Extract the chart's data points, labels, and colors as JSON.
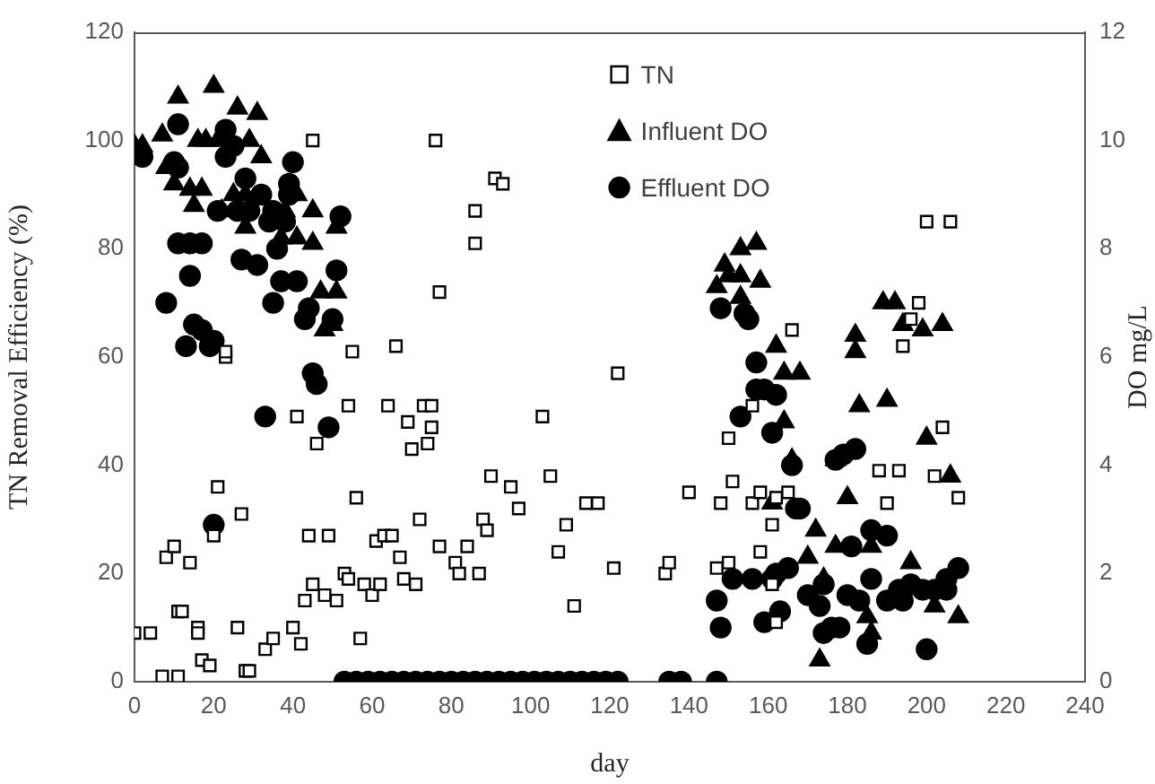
{
  "chart_data": {
    "type": "scatter",
    "xlabel": "day",
    "ylabel": "TN Removal Efficiency (%)",
    "y2label": "DO mg/L",
    "xlim": [
      0,
      240
    ],
    "xticks": [
      0,
      20,
      40,
      60,
      80,
      100,
      120,
      140,
      160,
      180,
      200,
      220,
      240
    ],
    "ylim": [
      0,
      120
    ],
    "yticks": [
      0,
      20,
      40,
      60,
      80,
      100,
      120
    ],
    "y2lim": [
      0,
      12
    ],
    "y2ticks": [
      0,
      2,
      4,
      6,
      8,
      10,
      12
    ],
    "grid": false,
    "legend": "top",
    "series": [
      {
        "name": "TN",
        "color": "#000000",
        "marker": "square",
        "x": [
          0,
          4,
          7,
          8,
          10,
          11,
          11,
          12,
          14,
          16,
          16,
          17,
          19,
          20,
          21,
          23,
          23,
          26,
          27,
          28,
          29,
          33,
          35,
          40,
          41,
          42,
          43,
          44,
          45,
          45,
          46,
          48,
          49,
          51,
          53,
          54,
          54,
          55,
          56,
          57,
          58,
          60,
          61,
          62,
          63,
          64,
          65,
          66,
          67,
          68,
          69,
          70,
          71,
          72,
          73,
          74,
          75,
          75,
          76,
          77,
          77,
          81,
          82,
          84,
          86,
          86,
          87,
          88,
          89,
          90,
          91,
          93,
          95,
          97,
          103,
          105,
          107,
          109,
          111,
          114,
          117,
          121,
          122,
          134,
          135,
          140,
          147,
          148,
          150,
          150,
          151,
          156,
          156,
          158,
          158,
          161,
          161,
          162,
          162,
          165,
          166,
          188,
          190,
          193,
          194,
          196,
          198,
          200,
          202,
          204,
          206,
          208
        ],
        "values": [
          9,
          9,
          1,
          23,
          25,
          1,
          13,
          13,
          22,
          10,
          9,
          4,
          3,
          27,
          36,
          60,
          61,
          10,
          31,
          2,
          2,
          6,
          8,
          10,
          49,
          7,
          15,
          27,
          18,
          100,
          44,
          16,
          27,
          15,
          20,
          19,
          51,
          61,
          34,
          8,
          18,
          16,
          26,
          18,
          27,
          51,
          27,
          62,
          23,
          19,
          48,
          43,
          18,
          30,
          51,
          44,
          51,
          47,
          100,
          25,
          72,
          22,
          20,
          25,
          81,
          87,
          20,
          30,
          28,
          38,
          93,
          92,
          36,
          32,
          49,
          38,
          24,
          29,
          14,
          33,
          33,
          21,
          57,
          20,
          22,
          35,
          21,
          33,
          22,
          45,
          37,
          33,
          51,
          35,
          24,
          18,
          29,
          34,
          11,
          35,
          65,
          39,
          33,
          39,
          62,
          67,
          70,
          85,
          38,
          47,
          85,
          34
        ]
      },
      {
        "name": "Influent DO",
        "color": "#000000",
        "marker": "triangle",
        "axis": "y2",
        "x": [
          0,
          2,
          7,
          8,
          10,
          11,
          14,
          15,
          16,
          17,
          18,
          20,
          21,
          22,
          25,
          26,
          28,
          28,
          29,
          31,
          32,
          37,
          38,
          41,
          41,
          45,
          45,
          47,
          48,
          50,
          51,
          51,
          147,
          149,
          150,
          153,
          153,
          153,
          157,
          158,
          161,
          162,
          164,
          164,
          166,
          168,
          170,
          172,
          173,
          174,
          177,
          177,
          180,
          182,
          182,
          183,
          185,
          186,
          186,
          189,
          190,
          192,
          194,
          196,
          199,
          200,
          202,
          204,
          206,
          208
        ],
        "values": [
          9.9,
          9.9,
          10.1,
          9.5,
          9.2,
          10.8,
          9.1,
          8.8,
          10.0,
          9.1,
          10.0,
          11.0,
          10.0,
          8.7,
          9.0,
          10.6,
          9.0,
          8.4,
          10.0,
          10.5,
          9.7,
          8.2,
          8.7,
          9.0,
          8.2,
          8.7,
          8.1,
          7.2,
          6.5,
          6.6,
          8.4,
          7.2,
          7.3,
          7.7,
          7.5,
          8.0,
          7.5,
          7.1,
          8.1,
          7.4,
          3.3,
          6.2,
          5.7,
          4.8,
          4.1,
          5.7,
          2.3,
          2.8,
          0.4,
          1.9,
          4.1,
          2.5,
          3.4,
          6.4,
          6.1,
          5.1,
          1.2,
          0.9,
          2.5,
          7.0,
          5.2,
          7.0,
          6.6,
          2.2,
          6.5,
          4.5,
          1.4,
          6.6,
          3.8,
          1.2
        ]
      },
      {
        "name": "Effluent DO",
        "color": "#000000",
        "marker": "circle",
        "axis": "y2",
        "x": [
          2,
          8,
          10,
          11,
          11,
          11,
          13,
          14,
          14,
          15,
          17,
          17,
          19,
          20,
          20,
          21,
          23,
          23,
          25,
          26,
          27,
          28,
          29,
          31,
          32,
          33,
          34,
          35,
          35,
          36,
          37,
          38,
          39,
          39,
          40,
          41,
          43,
          44,
          45,
          46,
          49,
          50,
          51,
          52,
          53,
          56,
          59,
          62,
          65,
          68,
          71,
          74,
          77,
          80,
          83,
          86,
          89,
          92,
          95,
          98,
          101,
          104,
          107,
          110,
          113,
          116,
          119,
          122,
          135,
          138,
          147,
          147,
          148,
          148,
          151,
          153,
          154,
          155,
          156,
          157,
          157,
          159,
          159,
          161,
          161,
          162,
          162,
          163,
          165,
          166,
          167,
          168,
          170,
          173,
          174,
          174,
          176,
          177,
          178,
          179,
          180,
          181,
          182,
          183,
          185,
          186,
          186,
          190,
          190,
          193,
          194,
          196,
          199,
          200,
          202,
          205,
          205,
          208
        ],
        "values": [
          9.7,
          7.0,
          9.6,
          10.3,
          9.5,
          8.1,
          6.2,
          8.1,
          7.5,
          6.6,
          8.1,
          6.5,
          6.2,
          6.3,
          2.9,
          8.7,
          9.7,
          10.2,
          9.9,
          8.7,
          7.8,
          9.3,
          8.7,
          7.7,
          9.0,
          4.9,
          8.5,
          8.7,
          7.0,
          8.0,
          7.4,
          8.5,
          9.0,
          9.2,
          9.6,
          7.4,
          6.7,
          6.9,
          5.7,
          5.5,
          4.7,
          6.7,
          7.6,
          8.6,
          0,
          0,
          0,
          0,
          0,
          0,
          0,
          0,
          0,
          0,
          0,
          0,
          0,
          0,
          0,
          0,
          0,
          0,
          0,
          0,
          0,
          0,
          0,
          0,
          0,
          0,
          0,
          1.5,
          6.9,
          1.0,
          1.9,
          4.9,
          6.8,
          6.7,
          1.9,
          5.9,
          5.4,
          5.4,
          1.1,
          4.6,
          1.9,
          5.3,
          2.0,
          1.3,
          2.1,
          4.0,
          3.2,
          3.2,
          1.6,
          1.4,
          0.9,
          1.8,
          1.0,
          4.1,
          1.0,
          4.2,
          1.6,
          2.5,
          4.3,
          1.5,
          0.7,
          2.8,
          1.9,
          2.7,
          1.5,
          1.7,
          1.5,
          1.8,
          1.7,
          0.6,
          1.7,
          1.7,
          1.9,
          2.1
        ]
      }
    ]
  }
}
